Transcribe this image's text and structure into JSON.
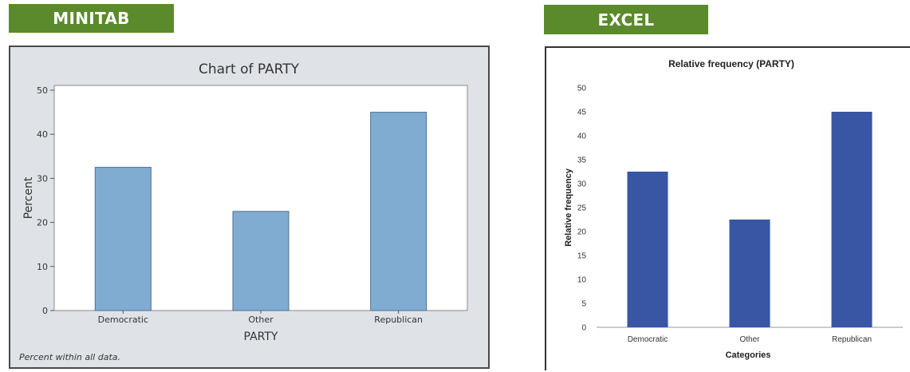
{
  "colors": {
    "banner": "#5a8a2b",
    "minitab_panel_bg": "#dfe3e8",
    "minitab_bar": "#80acd2",
    "minitab_bar_edge": "#4d6f8f",
    "excel_bar": "#3856a4"
  },
  "banners": {
    "left": "MINITAB",
    "right": "EXCEL"
  },
  "chart_data": [
    {
      "type": "bar",
      "title": "Chart of PARTY",
      "xlabel": "PARTY",
      "ylabel": "Percent",
      "categories": [
        "Democratic",
        "Other",
        "Republican"
      ],
      "values": [
        32.5,
        22.5,
        45
      ],
      "ylim": [
        0,
        50
      ],
      "yticks": [
        0,
        10,
        20,
        30,
        40,
        50
      ],
      "grid": false,
      "footnote": "Percent within all data."
    },
    {
      "type": "bar",
      "title": "Relative frequency (PARTY)",
      "xlabel": "Categories",
      "ylabel": "Relative frequency",
      "categories": [
        "Democratic",
        "Other",
        "Republican"
      ],
      "values": [
        32.5,
        22.5,
        45
      ],
      "ylim": [
        0,
        50
      ],
      "yticks": [
        0,
        5,
        10,
        15,
        20,
        25,
        30,
        35,
        40,
        45,
        50
      ],
      "grid": false
    }
  ]
}
